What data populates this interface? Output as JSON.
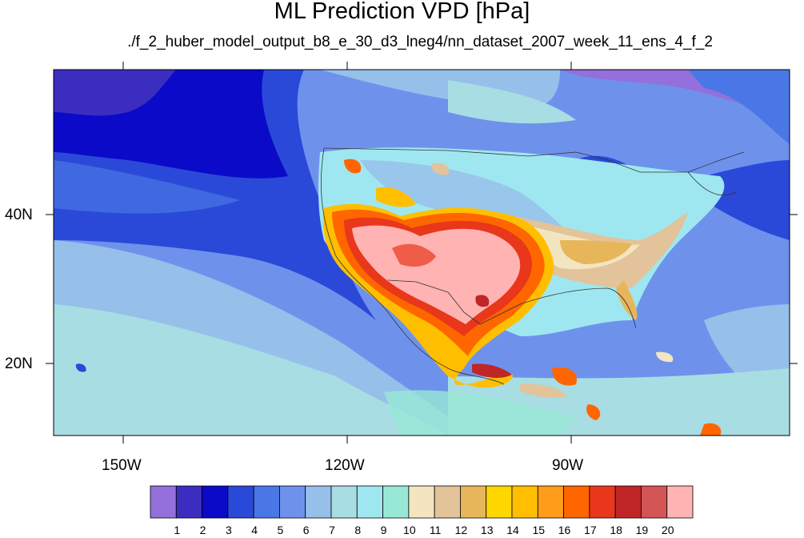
{
  "title": "ML Prediction VPD [hPa]",
  "subtitle": "./f_2_huber_model_output_b8_e_30_d3_lneg4/nn_dataset_2007_week_11_ens_4_f_2",
  "axes": {
    "lat_labels": [
      "40N",
      "20N"
    ],
    "lon_labels": [
      "150W",
      "120W",
      "90W"
    ]
  },
  "colorbar": {
    "labels": [
      "1",
      "2",
      "3",
      "4",
      "5",
      "6",
      "7",
      "8",
      "9",
      "10",
      "11",
      "12",
      "13",
      "14",
      "15",
      "16",
      "17",
      "18",
      "19",
      "20"
    ],
    "colors": [
      "#9370db",
      "#3b2dbf",
      "#0a0ac8",
      "#2a49d8",
      "#4a77e6",
      "#6e92ec",
      "#96bfea",
      "#a8dde3",
      "#9fe7f0",
      "#98e8d6",
      "#f3e5c0",
      "#e2c39a",
      "#e8b65a",
      "#ffd700",
      "#ffbf00",
      "#ff9c1a",
      "#ff6600",
      "#e8371a",
      "#c02626",
      "#d35555",
      "#ffb3b3"
    ]
  }
}
